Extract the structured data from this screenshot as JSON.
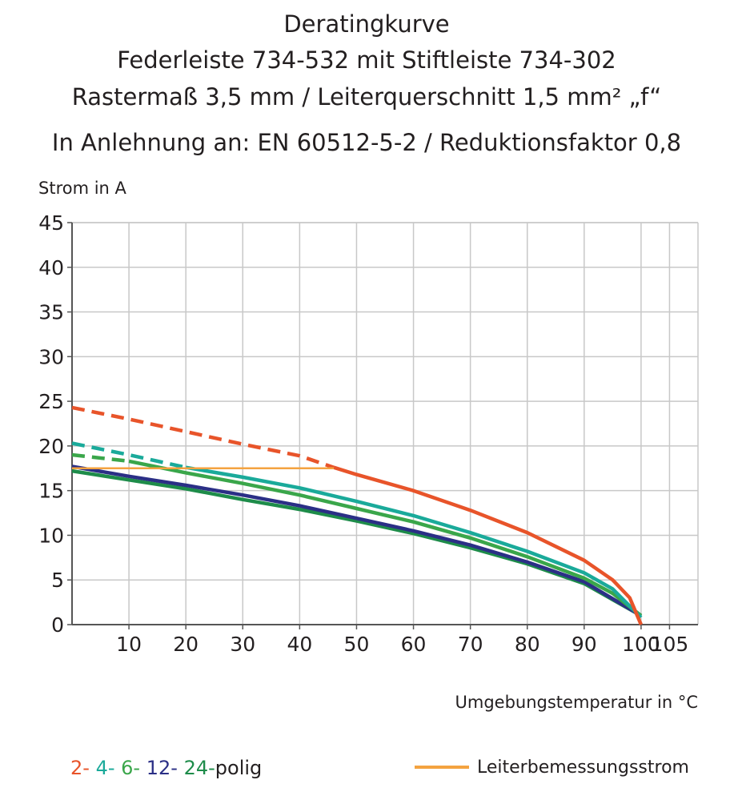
{
  "chart_data": {
    "type": "line",
    "title": [
      "Deratingkurve",
      "Federleiste 734-532 mit Stiftleiste 734-302",
      "Rastermaß 3,5 mm / Leiterquerschnitt 1,5 mm² „f“",
      "In Anlehnung an: EN 60512-5-2 / Reduktionsfaktor 0,8"
    ],
    "y_label": "Strom in A",
    "x_label": "Umgebungstemperatur in °C",
    "legend_suffix": "polig",
    "xlim": [
      0,
      110
    ],
    "xticks": [
      10,
      20,
      30,
      40,
      50,
      60,
      70,
      80,
      90,
      100,
      105
    ],
    "ylim": [
      0,
      45
    ],
    "yticks": [
      0,
      5,
      10,
      15,
      20,
      25,
      30,
      35,
      40,
      45
    ],
    "grid": true,
    "series": [
      {
        "color": "#e8542a",
        "dashed": true,
        "x": [
          0,
          10,
          20,
          30,
          40,
          46
        ],
        "values": [
          24.3,
          23,
          21.6,
          20.2,
          18.9,
          17.6
        ]
      },
      {
        "color": "#1aaa9a",
        "dashed": true,
        "x": [
          0,
          10,
          20
        ],
        "values": [
          20.3,
          19,
          17.6
        ]
      },
      {
        "color": "#3aa64a",
        "dashed": true,
        "x": [
          0,
          10
        ],
        "values": [
          19,
          18.3
        ]
      },
      {
        "name": "24-",
        "color": "#1e8c4a",
        "x": [
          0,
          10,
          20,
          30,
          40,
          50,
          60,
          70,
          80,
          90,
          100
        ],
        "values": [
          17.2,
          16.2,
          15.2,
          14,
          12.9,
          11.6,
          10.2,
          8.6,
          6.8,
          4.6,
          1
        ]
      },
      {
        "name": "12-",
        "color": "#2b2f86",
        "x": [
          0,
          10,
          20,
          30,
          40,
          50,
          60,
          70,
          80,
          90,
          100
        ],
        "values": [
          17.7,
          16.6,
          15.6,
          14.5,
          13.3,
          11.9,
          10.5,
          8.9,
          7,
          4.8,
          1
        ]
      },
      {
        "name": "6-",
        "color": "#3aa64a",
        "x": [
          10,
          20,
          30,
          40,
          50,
          60,
          70,
          80,
          90,
          95,
          100
        ],
        "values": [
          18.3,
          17,
          15.8,
          14.5,
          13,
          11.5,
          9.7,
          7.6,
          5.2,
          3.5,
          1
        ]
      },
      {
        "name": "4-",
        "color": "#1aaa9a",
        "x": [
          20,
          30,
          40,
          50,
          60,
          70,
          80,
          90,
          95,
          100
        ],
        "values": [
          17.6,
          16.5,
          15.3,
          13.8,
          12.2,
          10.3,
          8.2,
          5.8,
          4,
          0.8
        ]
      },
      {
        "name": "2-",
        "color": "#e8542a",
        "x": [
          46,
          50,
          60,
          70,
          80,
          90,
          95,
          98,
          100
        ],
        "values": [
          17.6,
          16.8,
          15,
          12.8,
          10.3,
          7.2,
          5,
          3,
          0
        ]
      },
      {
        "name": "Leiterbemessungsstrom",
        "color": "#f4a340",
        "x": [
          0,
          46
        ],
        "values": [
          17.5,
          17.5
        ]
      }
    ]
  }
}
